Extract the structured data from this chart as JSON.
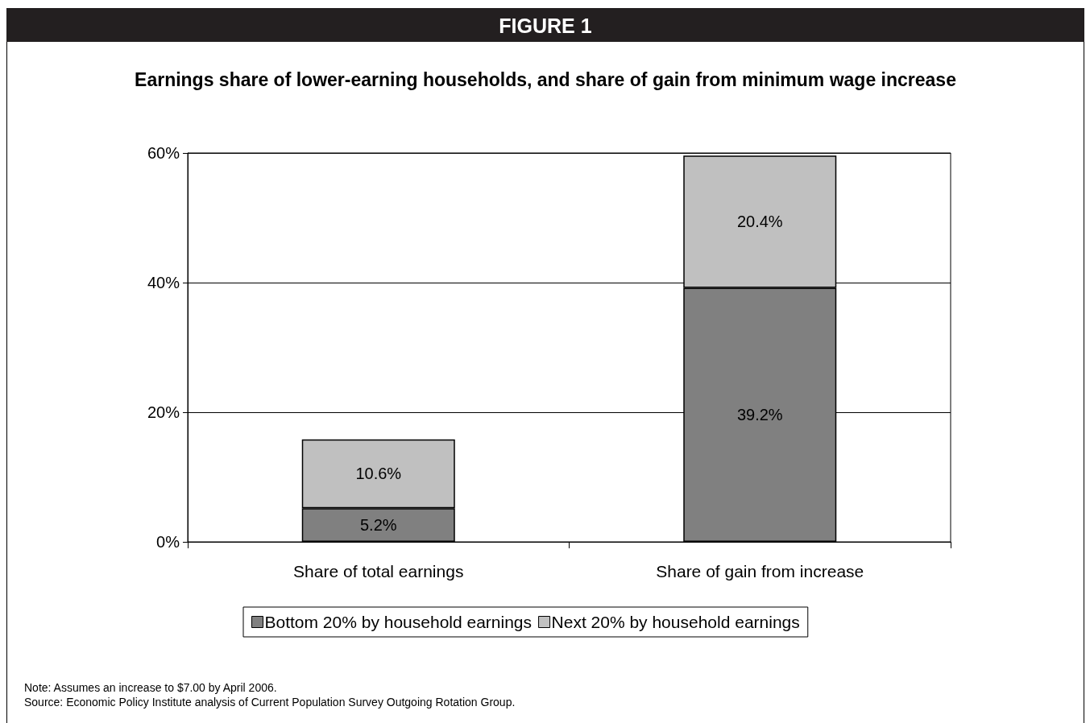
{
  "chart_data": {
    "type": "bar",
    "title": "FIGURE 1",
    "subtitle": "Earnings share of lower-earning households, and share of gain from minimum wage increase",
    "categories": [
      "Share of total earnings",
      "Share of gain from increase"
    ],
    "series": [
      {
        "name": "Bottom 20% by household earnings",
        "color": "#808080",
        "values": [
          5.2,
          39.2
        ],
        "value_labels": [
          "5.2%",
          "39.2%"
        ]
      },
      {
        "name": "Next 20% by household earnings",
        "color": "#c0c0c0",
        "values": [
          10.6,
          20.4
        ],
        "value_labels": [
          "10.6%",
          "20.4%"
        ]
      }
    ],
    "stacked": true,
    "ylim": [
      0,
      60
    ],
    "yticks": [
      {
        "value": 0,
        "label": "0%"
      },
      {
        "value": 20,
        "label": "20%"
      },
      {
        "value": 40,
        "label": "40%"
      },
      {
        "value": 60,
        "label": "60%"
      }
    ],
    "grid": "y",
    "legend": "bottom",
    "annotations": [
      "Note: Assumes an increase to $7.00 by April 2006.",
      "Source: Economic Policy Institute analysis of Current Population Survey Outgoing Rotation Group."
    ]
  }
}
